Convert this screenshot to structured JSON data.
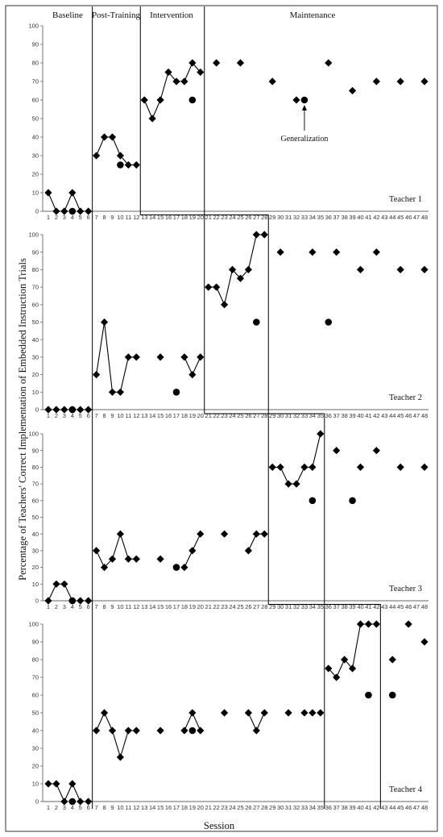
{
  "chart_data": {
    "type": "line",
    "ylabel": "Percentage of Teachers' Correct Implementation of Embedded Instruction Trials",
    "xlabel": "Session",
    "phases": [
      "Baseline",
      "Post-Training",
      "Intervention",
      "Maintenance"
    ],
    "annotation": "Generalization",
    "ylim": [
      0,
      100
    ],
    "yticks": [
      0,
      10,
      20,
      30,
      40,
      50,
      60,
      70,
      80,
      90,
      100
    ],
    "xlim": [
      1,
      48
    ],
    "panels": [
      {
        "teacher": "Teacher 1",
        "phase_change_after": [
          6.5,
          12.5,
          20.5
        ],
        "segments": [
          [
            [
              1,
              10
            ],
            [
              2,
              0
            ],
            [
              3,
              0
            ],
            [
              4,
              10
            ],
            [
              5,
              0
            ],
            [
              6,
              0
            ]
          ],
          [
            [
              7,
              30
            ],
            [
              8,
              40
            ],
            [
              9,
              40
            ],
            [
              10,
              30
            ],
            [
              11,
              25
            ],
            [
              12,
              25
            ]
          ],
          [
            [
              13,
              60
            ],
            [
              14,
              50
            ],
            [
              15,
              60
            ],
            [
              16,
              75
            ],
            [
              17,
              70
            ],
            [
              18,
              70
            ],
            [
              19,
              80
            ],
            [
              20,
              75
            ]
          ],
          [
            [
              22,
              80
            ]
          ],
          [
            [
              25,
              80
            ]
          ],
          [
            [
              29,
              70
            ]
          ],
          [
            [
              32,
              60
            ]
          ],
          [
            [
              36,
              80
            ]
          ],
          [
            [
              39,
              65
            ]
          ],
          [
            [
              42,
              70
            ]
          ],
          [
            [
              45,
              70
            ]
          ],
          [
            [
              48,
              70
            ]
          ]
        ],
        "generalization": [
          [
            4,
            0
          ],
          [
            10,
            25
          ],
          [
            19,
            60
          ],
          [
            33,
            60
          ]
        ]
      },
      {
        "teacher": "Teacher 2",
        "phase_change_after": [
          6.5,
          20.5,
          28.5
        ],
        "segments": [
          [
            [
              1,
              0
            ],
            [
              2,
              0
            ],
            [
              3,
              0
            ],
            [
              4,
              0
            ],
            [
              5,
              0
            ],
            [
              6,
              0
            ]
          ],
          [
            [
              7,
              20
            ],
            [
              8,
              50
            ],
            [
              9,
              10
            ],
            [
              10,
              10
            ],
            [
              11,
              30
            ],
            [
              12,
              30
            ]
          ],
          [
            [
              15,
              30
            ]
          ],
          [
            [
              18,
              30
            ],
            [
              19,
              20
            ],
            [
              20,
              30
            ]
          ],
          [
            [
              21,
              70
            ],
            [
              22,
              70
            ],
            [
              23,
              60
            ],
            [
              24,
              80
            ],
            [
              25,
              75
            ],
            [
              26,
              80
            ],
            [
              27,
              100
            ],
            [
              28,
              100
            ]
          ],
          [
            [
              30,
              90
            ]
          ],
          [
            [
              34,
              90
            ]
          ],
          [
            [
              37,
              90
            ]
          ],
          [
            [
              40,
              80
            ]
          ],
          [
            [
              42,
              90
            ]
          ],
          [
            [
              45,
              80
            ]
          ],
          [
            [
              48,
              80
            ]
          ]
        ],
        "generalization": [
          [
            4,
            0
          ],
          [
            17,
            10
          ],
          [
            27,
            50
          ],
          [
            36,
            50
          ]
        ]
      },
      {
        "teacher": "Teacher 3",
        "phase_change_after": [
          6.5,
          28.5,
          35.5
        ],
        "segments": [
          [
            [
              1,
              0
            ],
            [
              2,
              10
            ],
            [
              3,
              10
            ],
            [
              4,
              0
            ],
            [
              5,
              0
            ],
            [
              6,
              0
            ]
          ],
          [
            [
              7,
              30
            ],
            [
              8,
              20
            ],
            [
              9,
              25
            ],
            [
              10,
              40
            ],
            [
              11,
              25
            ],
            [
              12,
              25
            ]
          ],
          [
            [
              15,
              25
            ]
          ],
          [
            [
              18,
              20
            ],
            [
              19,
              30
            ],
            [
              20,
              40
            ]
          ],
          [
            [
              23,
              40
            ]
          ],
          [
            [
              26,
              30
            ],
            [
              27,
              40
            ],
            [
              28,
              40
            ]
          ],
          [
            [
              29,
              80
            ],
            [
              30,
              80
            ],
            [
              31,
              70
            ],
            [
              32,
              70
            ],
            [
              33,
              80
            ],
            [
              34,
              80
            ],
            [
              35,
              100
            ]
          ],
          [
            [
              37,
              90
            ]
          ],
          [
            [
              40,
              80
            ]
          ],
          [
            [
              42,
              90
            ]
          ],
          [
            [
              45,
              80
            ]
          ],
          [
            [
              48,
              80
            ]
          ]
        ],
        "generalization": [
          [
            4,
            0
          ],
          [
            17,
            20
          ],
          [
            34,
            60
          ],
          [
            39,
            60
          ]
        ]
      },
      {
        "teacher": "Teacher 4",
        "phase_change_after": [
          6.5,
          35.5,
          42.5
        ],
        "segments": [
          [
            [
              1,
              10
            ],
            [
              2,
              10
            ],
            [
              3,
              0
            ],
            [
              4,
              10
            ],
            [
              5,
              0
            ],
            [
              6,
              0
            ]
          ],
          [
            [
              7,
              40
            ],
            [
              8,
              50
            ],
            [
              9,
              40
            ],
            [
              10,
              25
            ],
            [
              11,
              40
            ],
            [
              12,
              40
            ]
          ],
          [
            [
              15,
              40
            ]
          ],
          [
            [
              18,
              40
            ],
            [
              19,
              50
            ],
            [
              20,
              40
            ]
          ],
          [
            [
              23,
              50
            ]
          ],
          [
            [
              26,
              50
            ],
            [
              27,
              40
            ],
            [
              28,
              50
            ]
          ],
          [
            [
              31,
              50
            ]
          ],
          [
            [
              33,
              50
            ]
          ],
          [
            [
              34,
              50
            ]
          ],
          [
            [
              35,
              50
            ]
          ],
          [
            [
              36,
              75
            ],
            [
              37,
              70
            ],
            [
              38,
              80
            ],
            [
              39,
              75
            ],
            [
              40,
              100
            ],
            [
              41,
              100
            ],
            [
              42,
              100
            ]
          ],
          [
            [
              44,
              80
            ]
          ],
          [
            [
              46,
              100
            ]
          ],
          [
            [
              48,
              90
            ]
          ]
        ],
        "generalization": [
          [
            4,
            0
          ],
          [
            19,
            40
          ],
          [
            41,
            60
          ],
          [
            44,
            60
          ]
        ]
      }
    ]
  }
}
